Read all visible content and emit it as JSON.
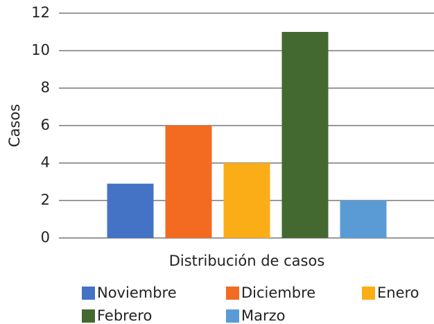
{
  "chart_data": {
    "type": "bar",
    "x_label": "Distribución de casos",
    "y_label": "Casos",
    "categories": [
      null
    ],
    "series": [
      {
        "name": "Noviembre",
        "color": "#4472c4",
        "values": [
          2.9
        ]
      },
      {
        "name": "Diciembre",
        "color": "#f26b21",
        "values": [
          6
        ]
      },
      {
        "name": "Enero",
        "color": "#fbad18",
        "values": [
          4
        ]
      },
      {
        "name": "Febrero",
        "color": "#436930",
        "values": [
          11
        ]
      },
      {
        "name": "Marzo",
        "color": "#5b9bd5",
        "values": [
          2
        ]
      }
    ],
    "ylim": [
      0,
      12
    ],
    "yticks": [
      0,
      2,
      4,
      6,
      8,
      10,
      12
    ],
    "grid": true,
    "legend": "bottom"
  }
}
